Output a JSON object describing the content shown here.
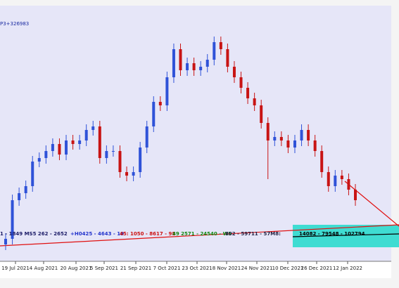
{
  "chart_data": {
    "type": "candlestick",
    "title": "P3+326983",
    "x_labels": [
      "19 Jul 2021",
      "4 Aug 2021",
      "20 Aug 2021",
      "5 Sep 2021",
      "21 Sep 2021",
      "7 Oct 2021",
      "23 Oct 2021",
      "8 Nov 2021",
      "24 Nov 2021",
      "10 Dec 2021",
      "26 Dec 2021",
      "12 Jan 2022"
    ],
    "annotations": [
      {
        "text": "1 - 1849 MS5 262 - 2652",
        "color": "#1a1a66"
      },
      {
        "text": "+H0425 - 4643 - 19",
        "color": "#2233cc"
      },
      {
        "text": "45: 1050 - 8617 - 98",
        "color": "#cc1111"
      },
      {
        "text": "49 2571 - 24540 - W5",
        "color": "#118811"
      },
      {
        "text": "802 - 59711 - 57M8:",
        "color": "#222244"
      },
      {
        "text": "14082 - 79548 - 102794",
        "color": "#000000"
      }
    ],
    "ylim": [
      0,
      364
    ],
    "up_color": "#2f52d8",
    "down_color": "#c81414",
    "open": [
      24,
      32,
      87,
      97,
      107,
      142,
      147,
      157,
      167,
      152,
      172,
      167,
      172,
      187,
      192,
      147,
      157,
      157,
      127,
      122,
      127,
      162,
      192,
      227,
      222,
      262,
      302,
      272,
      282,
      272,
      277,
      287,
      312,
      302,
      277,
      262,
      247,
      232,
      222,
      197,
      172,
      177,
      172,
      162,
      172,
      187,
      172,
      157,
      127,
      107,
      122,
      117,
      102
    ],
    "high": [
      40,
      95,
      105,
      115,
      150,
      155,
      165,
      175,
      175,
      180,
      180,
      180,
      195,
      200,
      200,
      165,
      165,
      165,
      135,
      135,
      170,
      200,
      235,
      235,
      270,
      310,
      310,
      290,
      290,
      285,
      295,
      320,
      320,
      310,
      285,
      270,
      255,
      240,
      230,
      205,
      185,
      185,
      180,
      180,
      195,
      195,
      180,
      165,
      135,
      130,
      130,
      125,
      110
    ],
    "low": [
      16,
      24,
      79,
      89,
      99,
      134,
      139,
      149,
      144,
      144,
      159,
      159,
      164,
      179,
      139,
      139,
      149,
      119,
      114,
      114,
      119,
      154,
      184,
      214,
      214,
      254,
      264,
      264,
      264,
      264,
      269,
      279,
      294,
      269,
      254,
      239,
      224,
      214,
      189,
      117,
      164,
      164,
      154,
      154,
      164,
      164,
      149,
      119,
      99,
      99,
      109,
      94,
      79
    ],
    "close": [
      32,
      87,
      97,
      107,
      142,
      147,
      157,
      167,
      152,
      172,
      167,
      172,
      187,
      192,
      147,
      157,
      157,
      127,
      122,
      127,
      162,
      192,
      227,
      222,
      262,
      302,
      272,
      282,
      272,
      277,
      287,
      312,
      302,
      277,
      262,
      247,
      232,
      222,
      197,
      172,
      177,
      172,
      162,
      172,
      187,
      172,
      157,
      127,
      107,
      122,
      117,
      102,
      87
    ]
  }
}
